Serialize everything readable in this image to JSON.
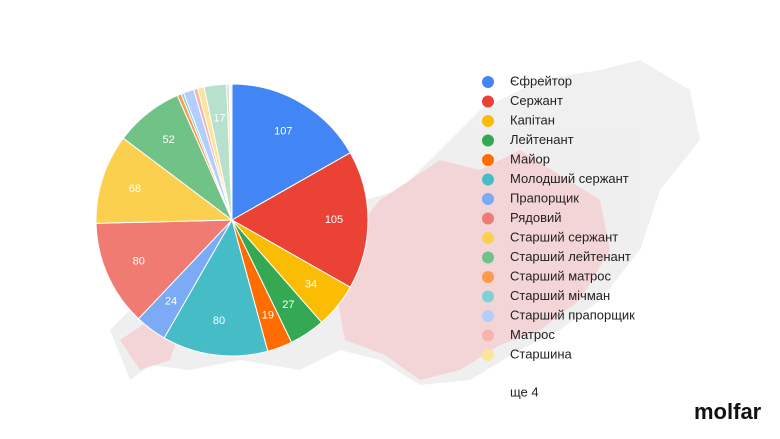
{
  "chart_data": {
    "type": "pie",
    "categories": [
      "Єфрейтор",
      "Сержант",
      "Капітан",
      "Лейтенант",
      "Майор",
      "Молодший сержант",
      "Прапорщик",
      "Рядовий",
      "Старший сержант",
      "Старший лейтенант",
      "Старший матрос",
      "Старший мічман",
      "Старший прапорщик",
      "Матрос",
      "Старшина",
      null,
      null,
      null,
      null
    ],
    "values": [
      107,
      105,
      34,
      27,
      19,
      80,
      24,
      80,
      68,
      52,
      3,
      2,
      8,
      3,
      5,
      17,
      2,
      1,
      1
    ],
    "colors": [
      "#4285f4",
      "#ea4335",
      "#fbbc04",
      "#34a853",
      "#ff6d01",
      "#46bdc6",
      "#7baaf7",
      "#f07b72",
      "#fcd04f",
      "#71c287",
      "#ff994d",
      "#7ed1d7",
      "#b3cefb",
      "#f7b4ae",
      "#fde49b",
      "#b7e1cd",
      "#d9d9d9",
      "#f4c7c3",
      "#c9daf8"
    ],
    "legend_overflow": "ще 4"
  },
  "logo": "molfar"
}
